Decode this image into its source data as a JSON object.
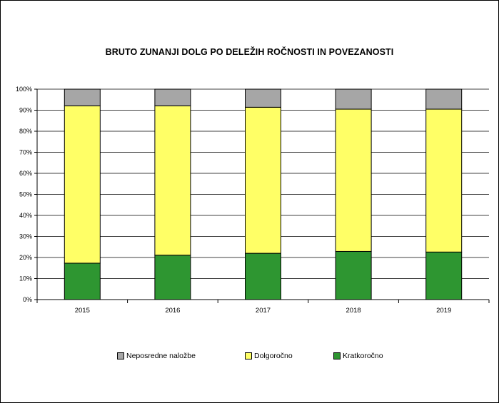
{
  "chart_data": {
    "type": "bar",
    "stacked": true,
    "percent": true,
    "title": "BRUTO ZUNANJI DOLG PO DELEŽIH ROČNOSTI IN POVEZANOSTI",
    "categories": [
      "2015",
      "2016",
      "2017",
      "2018",
      "2019"
    ],
    "y_ticks": [
      "0%",
      "10%",
      "20%",
      "30%",
      "40%",
      "50%",
      "60%",
      "70%",
      "80%",
      "90%",
      "100%"
    ],
    "ylim": [
      0,
      100
    ],
    "legend_position": "bottom",
    "series": [
      {
        "name": "Kratkoročno",
        "color": "#2e9631",
        "values": [
          17.3,
          21.1,
          22.0,
          22.9,
          22.6
        ]
      },
      {
        "name": "Dolgoročno",
        "color": "#ffff66",
        "values": [
          74.8,
          71.0,
          69.4,
          67.6,
          67.9
        ]
      },
      {
        "name": "Neposredne naložbe",
        "color": "#a6a6a6",
        "values": [
          7.9,
          7.9,
          8.6,
          9.5,
          9.5
        ]
      }
    ],
    "legend_order": [
      "Neposredne naložbe",
      "Dolgoročno",
      "Kratkoročno"
    ]
  }
}
